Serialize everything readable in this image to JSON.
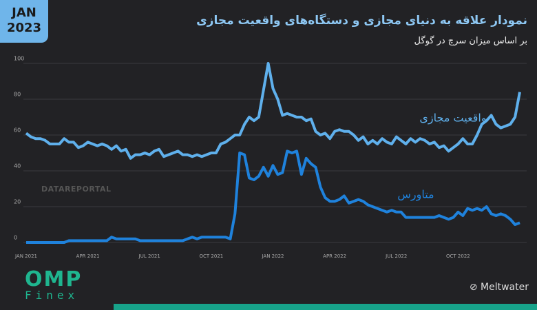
{
  "badge": {
    "month": "JAN",
    "year": "2023"
  },
  "watermark": "DATAREPORTAL",
  "logo": {
    "name": "OMP",
    "sub": "Finex"
  },
  "source": "Meltwater",
  "chart_data": {
    "type": "line",
    "title": "نمودار علاقه به دنیای مجازی و دستگاه‌های واقعیت مجازی",
    "subtitle": "بر اساس میزان سرچ در گوگل",
    "categories": [
      "JAN 2021",
      null,
      null,
      null,
      null,
      null,
      null,
      null,
      null,
      null,
      null,
      null,
      null,
      "APR 2021",
      null,
      null,
      null,
      null,
      null,
      null,
      null,
      null,
      null,
      null,
      null,
      null,
      "JUL 2021",
      null,
      null,
      null,
      null,
      null,
      null,
      null,
      null,
      null,
      null,
      null,
      null,
      "OCT 2021",
      null,
      null,
      null,
      null,
      null,
      null,
      null,
      null,
      null,
      null,
      null,
      null,
      "JAN 2022",
      null,
      null,
      null,
      null,
      null,
      null,
      null,
      null,
      null,
      null,
      null,
      null,
      "APR 2022",
      null,
      null,
      null,
      null,
      null,
      null,
      null,
      null,
      null,
      null,
      null,
      null,
      "JUL 2022",
      null,
      null,
      null,
      null,
      null,
      null,
      null,
      null,
      null,
      null,
      null,
      null,
      "OCT 2022",
      null,
      null,
      null,
      null,
      null,
      null,
      null,
      null,
      null,
      null,
      null,
      null,
      null
    ],
    "series": [
      {
        "name": "واقعیت مجازی",
        "color": "#5fb0ec",
        "values": [
          61,
          59,
          58,
          58,
          57,
          55,
          55,
          55,
          58,
          56,
          56,
          53,
          54,
          56,
          55,
          54,
          55,
          54,
          52,
          54,
          51,
          52,
          47,
          49,
          49,
          50,
          49,
          51,
          52,
          48,
          49,
          50,
          51,
          49,
          49,
          48,
          49,
          48,
          49,
          50,
          50,
          55,
          56,
          58,
          60,
          60,
          66,
          70,
          68,
          70,
          85,
          100,
          86,
          80,
          71,
          72,
          71,
          70,
          70,
          68,
          69,
          62,
          60,
          61,
          58,
          62,
          63,
          62,
          62,
          60,
          57,
          59,
          55,
          57,
          55,
          58,
          56,
          55,
          59,
          57,
          55,
          58,
          56,
          58,
          57,
          55,
          56,
          53,
          54,
          51,
          53,
          55,
          58,
          55,
          55,
          60,
          66,
          68,
          71,
          66,
          64,
          65,
          66,
          70,
          84
        ]
      },
      {
        "name": "متاورس",
        "color": "#1f82dc",
        "values": [
          0,
          0,
          0,
          0,
          0,
          0,
          0,
          0,
          0,
          1,
          1,
          1,
          1,
          1,
          1,
          1,
          1,
          1,
          3,
          2,
          2,
          2,
          2,
          2,
          1,
          1,
          1,
          1,
          1,
          1,
          1,
          1,
          1,
          1,
          2,
          3,
          2,
          3,
          3,
          3,
          3,
          3,
          3,
          2,
          16,
          50,
          49,
          36,
          35,
          37,
          42,
          37,
          43,
          38,
          39,
          51,
          50,
          51,
          38,
          47,
          44,
          42,
          31,
          25,
          23,
          23,
          24,
          26,
          22,
          23,
          24,
          23,
          21,
          20,
          19,
          18,
          17,
          18,
          17,
          17,
          14,
          14,
          14,
          14,
          14,
          14,
          14,
          15,
          14,
          13,
          14,
          17,
          15,
          19,
          18,
          19,
          18,
          20,
          16,
          15,
          16,
          15,
          13,
          10,
          11
        ]
      }
    ],
    "ylim": [
      0,
      100
    ],
    "yticks": [
      0,
      20,
      40,
      60,
      80,
      100
    ],
    "grid": true
  }
}
